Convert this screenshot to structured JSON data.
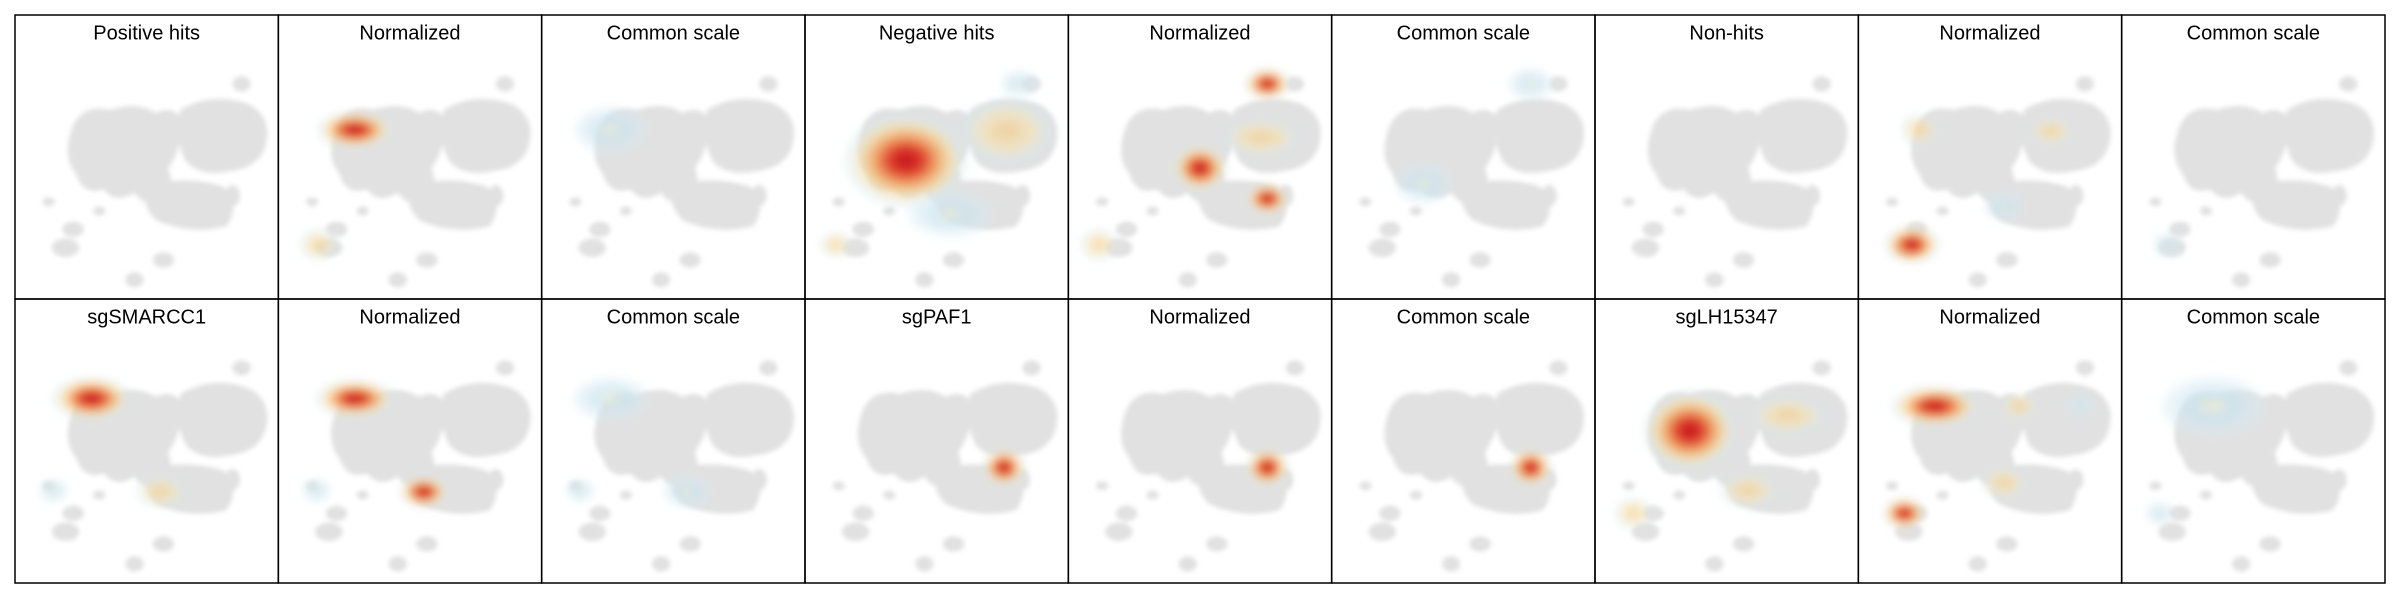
{
  "panels": [
    {
      "title": "Positive hits"
    },
    {
      "title": "Normalized"
    },
    {
      "title": "Common scale"
    },
    {
      "title": "Negative hits"
    },
    {
      "title": "Normalized"
    },
    {
      "title": "Common scale"
    },
    {
      "title": "Non-hits"
    },
    {
      "title": "Normalized"
    },
    {
      "title": "Common scale"
    },
    {
      "title": "sgSMARCC1"
    },
    {
      "title": "Normalized"
    },
    {
      "title": "Common scale"
    },
    {
      "title": "sgPAF1"
    },
    {
      "title": "Normalized"
    },
    {
      "title": "Common scale"
    },
    {
      "title": "sgLH15347"
    },
    {
      "title": "Normalized"
    },
    {
      "title": "Common scale"
    }
  ]
}
